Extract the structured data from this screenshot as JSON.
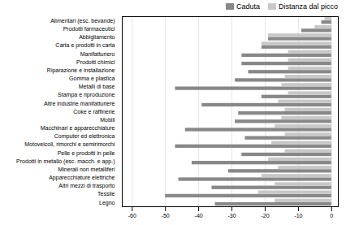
{
  "chart_data": {
    "type": "bar",
    "orientation": "horizontal",
    "categories": [
      "Alimentari (esc. bevande)",
      "Prodotti farmaceutici",
      "Abbigliamento",
      "Carta e prodotti in carta",
      "Manifatturiero",
      "Prodotti chimici",
      "Riparazione e installazione",
      "Gomma e plastica",
      "Metalli di base",
      "Stampa e riproduzione",
      "Altre industrie manifatturiere",
      "Coke e raffinerie",
      "Mobili",
      "Macchinari e apparecchiature",
      "Computer ed elettronica",
      "Motoveicoli, rimorchi e semirimorchi",
      "Pelle e prodotti in pelle",
      "Prodotti in metallo (esc. macch. e app.)",
      "Minerali non metalliferi",
      "Apparecchiature elettriche",
      "Altri mezzi di trasporto",
      "Tessile",
      "Legno"
    ],
    "series": [
      {
        "name": "Caduta",
        "color": "#888888",
        "values": [
          -3,
          -9,
          -19,
          -21,
          -27,
          -27,
          -25,
          -29,
          -47,
          -21,
          -39,
          -28,
          -29,
          -44,
          -26,
          -47,
          -27,
          -42,
          -31,
          -46,
          -36,
          -50,
          -35
        ]
      },
      {
        "name": "Distanza dal picco",
        "color": "#c8c8c8",
        "values": [
          -2,
          -5,
          -19,
          -21,
          -13,
          -13,
          -13,
          -14,
          -15,
          -13,
          -16,
          -14,
          -15,
          -17,
          -14,
          -18,
          -14,
          -19,
          -16,
          -21,
          -17,
          -22,
          -17
        ]
      }
    ],
    "xlim": [
      -63,
      2
    ],
    "xticks": [
      -60,
      -50,
      -40,
      -30,
      -20,
      -10,
      0
    ],
    "grid": true,
    "legend": "upper right"
  }
}
